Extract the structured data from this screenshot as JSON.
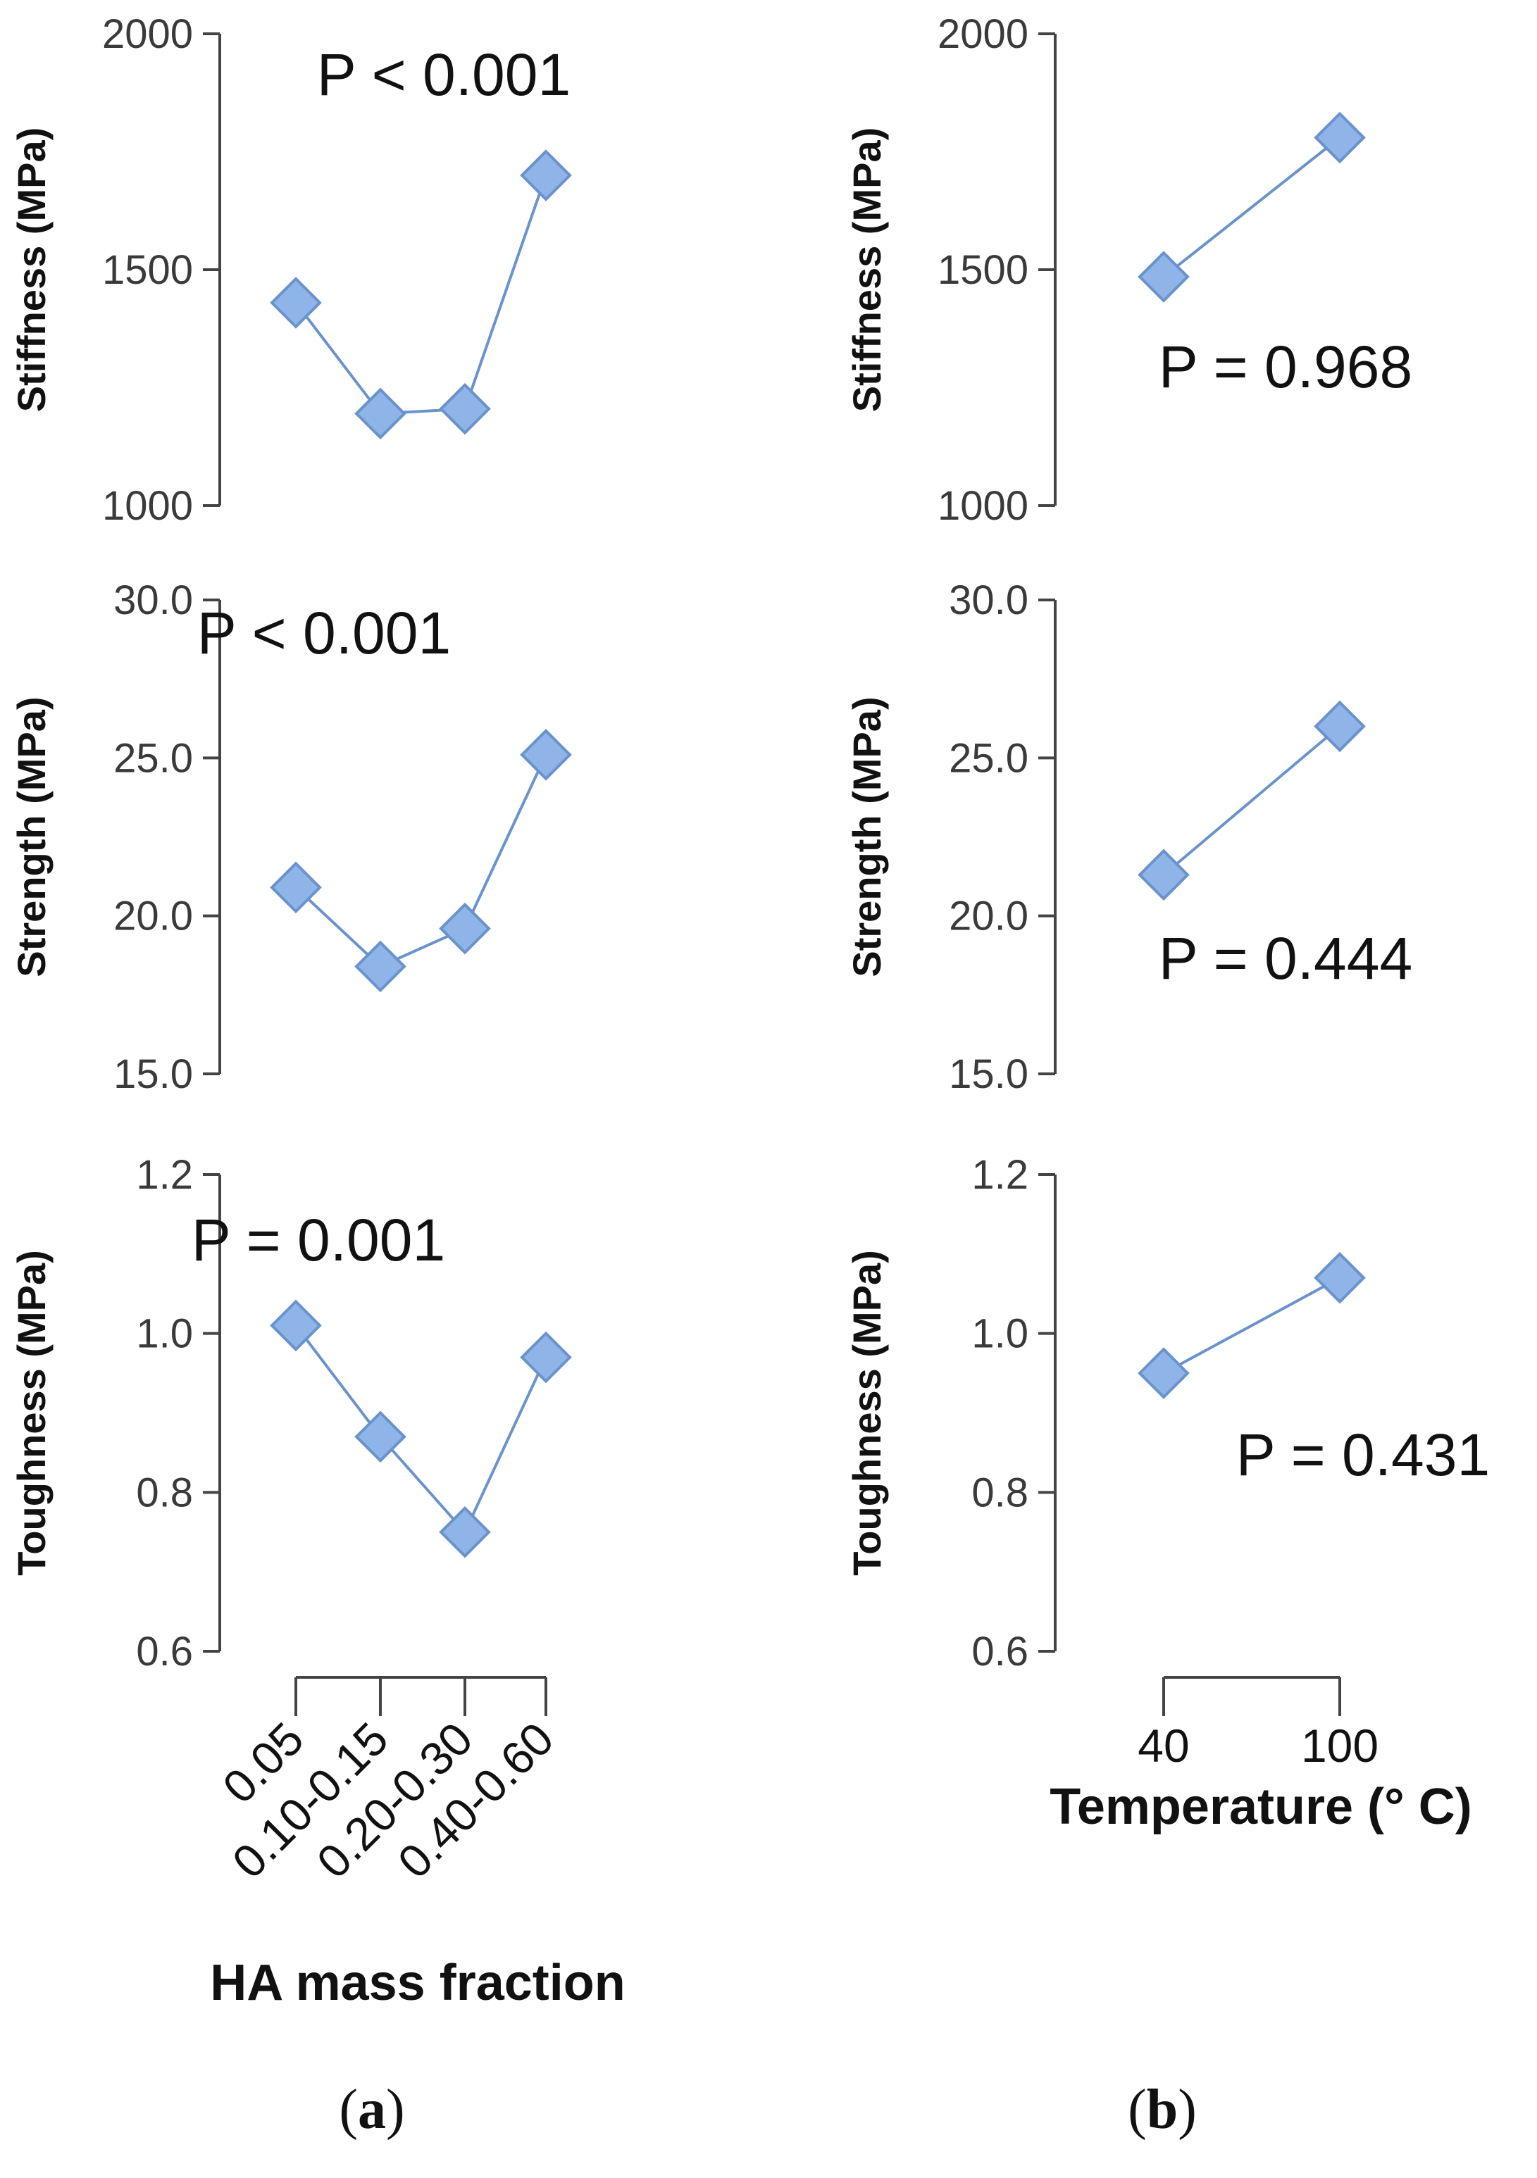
{
  "chart_data": [
    {
      "type": "line",
      "panel": "a",
      "row": 0,
      "ylabel": "Stiffness (MPa)",
      "yticks": [
        "1000",
        "1500",
        "2000"
      ],
      "ylim": [
        1000,
        2000
      ],
      "categories": [
        "0.05",
        "0.10-0.15",
        "0.20-0.30",
        "0.40-0.60"
      ],
      "values": [
        1430,
        1195,
        1205,
        1700
      ],
      "annotation": "P < 0.001"
    },
    {
      "type": "line",
      "panel": "a",
      "row": 1,
      "ylabel": "Strength (MPa)",
      "yticks": [
        "15.0",
        "20.0",
        "25.0",
        "30.0"
      ],
      "ylim": [
        15,
        30
      ],
      "categories": [
        "0.05",
        "0.10-0.15",
        "0.20-0.30",
        "0.40-0.60"
      ],
      "values": [
        20.9,
        18.4,
        19.6,
        25.1
      ],
      "annotation": "P < 0.001"
    },
    {
      "type": "line",
      "panel": "a",
      "row": 2,
      "ylabel": "Toughness (MPa)",
      "yticks": [
        "0.6",
        "0.8",
        "1.0",
        "1.2"
      ],
      "ylim": [
        0.6,
        1.2
      ],
      "categories": [
        "0.05",
        "0.10-0.15",
        "0.20-0.30",
        "0.40-0.60"
      ],
      "values": [
        1.01,
        0.87,
        0.75,
        0.97
      ],
      "annotation": "P = 0.001",
      "xlabel": "HA mass fraction"
    },
    {
      "type": "line",
      "panel": "b",
      "row": 0,
      "ylabel": "Stiffness (MPa)",
      "yticks": [
        "1000",
        "1500",
        "2000"
      ],
      "ylim": [
        1000,
        2000
      ],
      "categories": [
        "40",
        "100"
      ],
      "values": [
        1485,
        1780
      ],
      "annotation": "P = 0.968"
    },
    {
      "type": "line",
      "panel": "b",
      "row": 1,
      "ylabel": "Strength (MPa)",
      "yticks": [
        "15.0",
        "20.0",
        "25.0",
        "30.0"
      ],
      "ylim": [
        15,
        30
      ],
      "categories": [
        "40",
        "100"
      ],
      "values": [
        21.3,
        26.0
      ],
      "annotation": "P = 0.444"
    },
    {
      "type": "line",
      "panel": "b",
      "row": 2,
      "ylabel": "Toughness (MPa)",
      "yticks": [
        "0.6",
        "0.8",
        "1.0",
        "1.2"
      ],
      "ylim": [
        0.6,
        1.2
      ],
      "categories": [
        "40",
        "100"
      ],
      "values": [
        0.95,
        1.07
      ],
      "annotation": "P = 0.431",
      "xlabel": "Temperature (° C)"
    }
  ],
  "panel_labels": {
    "a": "a",
    "b": "b"
  },
  "colors": {
    "marker_fill": "#8fb4e8",
    "marker_stroke": "#6a93cc",
    "line": "#6a93cc",
    "axis": "#444444"
  }
}
